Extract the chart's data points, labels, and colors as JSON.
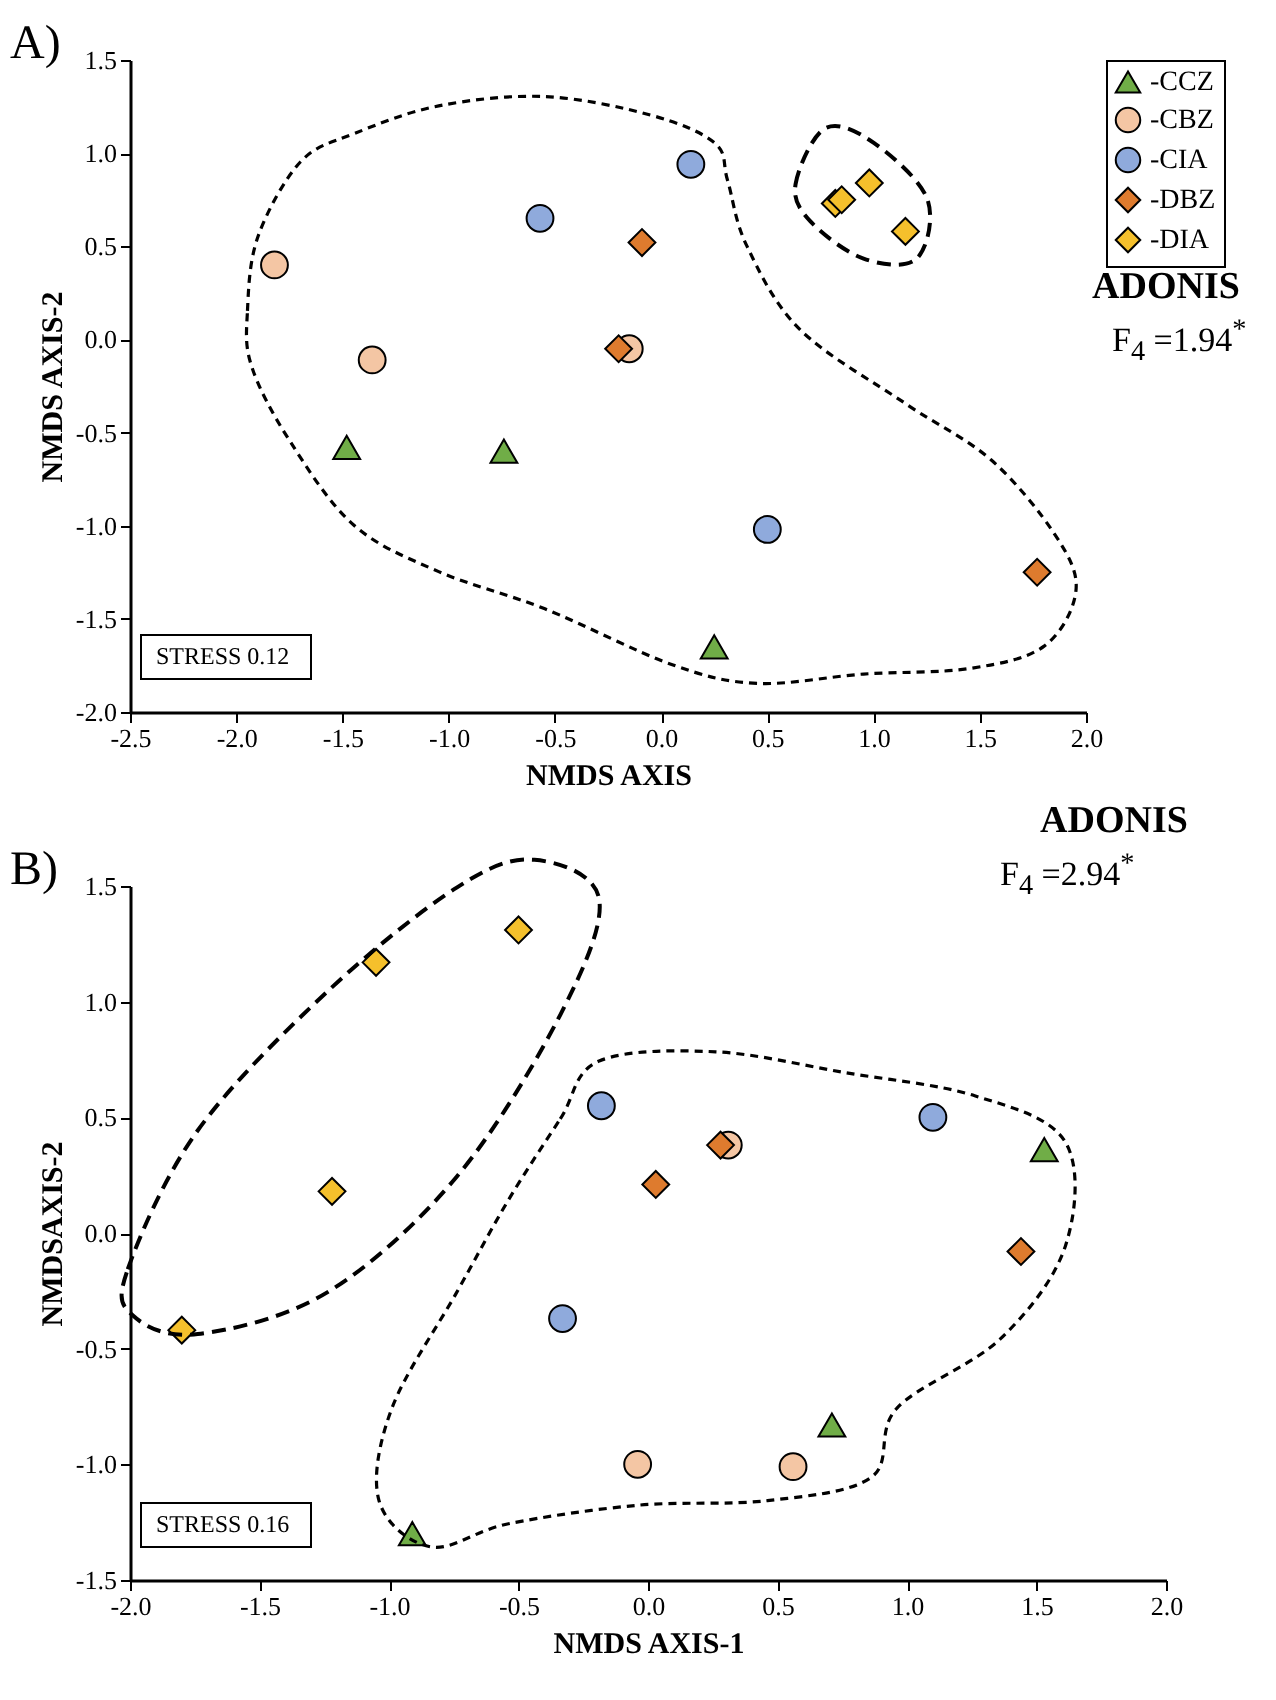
{
  "chart_data": [
    {
      "type": "scatter",
      "title": "A)",
      "xlabel": "NMDS AXIS",
      "ylabel": "NMDS AXIS-2",
      "annotations": [
        "ADONIS",
        "F$_{4}$ =1.94$^{*}$",
        "STRESS 0.12"
      ],
      "xlim": [
        -2.5,
        2.0
      ],
      "xticks": [
        -2.5,
        {
          "value": -2,
          "label": "-2.0"
        },
        -1.5,
        {
          "value": -1,
          "label": "-1.0"
        },
        -0.5,
        {
          "value": 0,
          "label": "0.0"
        },
        0.5,
        {
          "value": 1,
          "label": "1.0"
        },
        1.5,
        {
          "value": 2,
          "label": "2.0"
        }
      ],
      "ylim": [
        -2.0,
        1.5
      ],
      "yticks": [
        {
          "value": -2,
          "label": "-2.0"
        },
        -1.5,
        {
          "value": -1,
          "label": "-1.0"
        },
        -0.5,
        {
          "value": 0,
          "label": "0.0"
        },
        0.5,
        {
          "value": 1,
          "label": "1.0"
        },
        1.5
      ],
      "grid": false,
      "legend": "top right",
      "series": [
        {
          "name": "-CCZ",
          "color": "#70ad47",
          "marker": "triangle",
          "x": [
            -1.48,
            -0.74,
            0.25
          ],
          "values": [
            -0.58,
            -0.6,
            -1.65
          ]
        },
        {
          "name": "-CBZ",
          "color": "#f4c6a4",
          "marker": "circle",
          "x": [
            -1.82,
            -1.36,
            -0.15
          ],
          "values": [
            0.4,
            -0.11,
            -0.05
          ]
        },
        {
          "name": "-CIA",
          "color": "#8faadc",
          "marker": "circle",
          "x": [
            -0.57,
            0.14,
            0.5
          ],
          "values": [
            0.65,
            0.94,
            -1.02
          ]
        },
        {
          "name": "-DBZ",
          "color": "#de7b2e",
          "marker": "diamond",
          "x": [
            -0.09,
            -0.2,
            1.77
          ],
          "values": [
            0.52,
            -0.05,
            -1.25
          ]
        },
        {
          "name": "-DIA",
          "color": "#f5c02c",
          "marker": "diamond",
          "x": [
            0.82,
            0.85,
            0.98,
            1.15
          ],
          "values": [
            0.73,
            0.75,
            0.84,
            0.58
          ]
        }
      ]
    },
    {
      "type": "scatter",
      "title": "B)",
      "xlabel": "NMDS AXIS-1",
      "ylabel": "NMDSAXIS-2",
      "annotations": [
        "ADONIS",
        "F$_{4}$ =2.94$^{*}$",
        "STRESS 0.16"
      ],
      "xlim": [
        -2.0,
        2.0
      ],
      "xticks": [
        {
          "value": -2,
          "label": "-2.0"
        },
        -1.5,
        {
          "value": -1,
          "label": "-1.0"
        },
        -0.5,
        {
          "value": 0,
          "label": "0.0"
        },
        0.5,
        {
          "value": 1,
          "label": "1.0"
        },
        1.5,
        {
          "value": 2,
          "label": "2.0"
        }
      ],
      "ylim": [
        -1.5,
        1.5
      ],
      "yticks": [
        -1.5,
        {
          "value": -1,
          "label": "-1.0"
        },
        -0.5,
        {
          "value": 0,
          "label": "0.0"
        },
        0.5,
        {
          "value": 1,
          "label": "1.0"
        },
        1.5
      ],
      "grid": false,
      "series": [
        {
          "color": "#70ad47",
          "marker": "triangle",
          "x": [
            1.53,
            0.71,
            -0.91
          ],
          "values": [
            0.36,
            -0.83,
            -1.3
          ]
        },
        {
          "color": "#f4c6a4",
          "marker": "circle",
          "x": [
            0.31,
            -0.04,
            0.56
          ],
          "values": [
            0.38,
            -1.0,
            -1.01
          ]
        },
        {
          "color": "#8faadc",
          "marker": "circle",
          "x": [
            -0.18,
            -0.33,
            1.1
          ],
          "values": [
            0.55,
            -0.37,
            0.5
          ]
        },
        {
          "color": "#de7b2e",
          "marker": "diamond",
          "x": [
            0.03,
            0.28,
            1.44
          ],
          "values": [
            0.21,
            0.38,
            -0.08
          ]
        },
        {
          "color": "#f5c02c",
          "marker": "diamond",
          "x": [
            -1.8,
            -1.22,
            -1.05,
            -0.5
          ],
          "values": [
            -0.42,
            0.18,
            1.17,
            1.31
          ]
        }
      ]
    }
  ]
}
